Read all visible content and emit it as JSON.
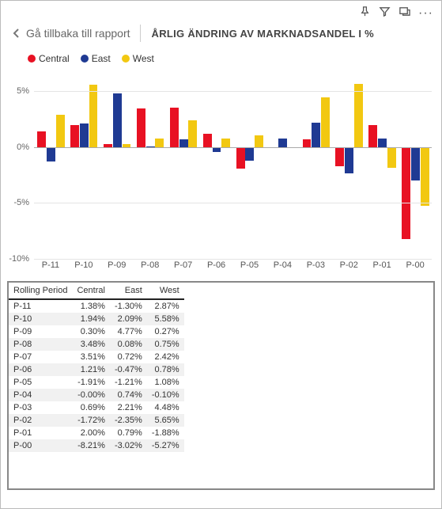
{
  "toolbar": {
    "icons": [
      "pin",
      "filter",
      "focus",
      "more"
    ]
  },
  "header": {
    "back_label": "Gå tillbaka till rapport",
    "title": "ÅRLIG ÄNDRING AV MARKNADSANDEL I %"
  },
  "legend": {
    "items": [
      {
        "label": "Central",
        "color": "#e81123"
      },
      {
        "label": "East",
        "color": "#1f3a93"
      },
      {
        "label": "West",
        "color": "#f2c811"
      }
    ]
  },
  "chart": {
    "type": "bar",
    "y_min": -10,
    "y_max": 7,
    "y_ticks": [
      5,
      0,
      -5,
      -10
    ],
    "y_tick_labels": [
      "5%",
      "0%",
      "-5%",
      "-10%"
    ],
    "gridline_color": "#e4e4e4",
    "zero_color": "#aaaaaa",
    "categories": [
      "P-11",
      "P-10",
      "P-09",
      "P-08",
      "P-07",
      "P-06",
      "P-05",
      "P-04",
      "P-03",
      "P-02",
      "P-01",
      "P-00"
    ],
    "series": [
      {
        "name": "Central",
        "color": "#e81123",
        "values": [
          1.38,
          1.94,
          0.3,
          3.48,
          3.51,
          1.21,
          -1.91,
          0.0,
          0.69,
          -1.72,
          2.0,
          -8.21
        ]
      },
      {
        "name": "East",
        "color": "#1f3a93",
        "values": [
          -1.3,
          2.09,
          4.77,
          0.08,
          0.72,
          -0.47,
          -1.21,
          0.74,
          2.21,
          -2.35,
          0.79,
          -3.02
        ]
      },
      {
        "name": "West",
        "color": "#f2c811",
        "values": [
          2.87,
          5.58,
          0.27,
          0.75,
          2.42,
          0.78,
          1.08,
          -0.1,
          4.48,
          5.65,
          -1.88,
          -5.27
        ]
      }
    ]
  },
  "table": {
    "columns": [
      "Rolling Period",
      "Central",
      "East",
      "West"
    ],
    "rows": [
      [
        "P-11",
        "1.38%",
        "-1.30%",
        "2.87%"
      ],
      [
        "P-10",
        "1.94%",
        "2.09%",
        "5.58%"
      ],
      [
        "P-09",
        "0.30%",
        "4.77%",
        "0.27%"
      ],
      [
        "P-08",
        "3.48%",
        "0.08%",
        "0.75%"
      ],
      [
        "P-07",
        "3.51%",
        "0.72%",
        "2.42%"
      ],
      [
        "P-06",
        "1.21%",
        "-0.47%",
        "0.78%"
      ],
      [
        "P-05",
        "-1.91%",
        "-1.21%",
        "1.08%"
      ],
      [
        "P-04",
        "-0.00%",
        "0.74%",
        "-0.10%"
      ],
      [
        "P-03",
        "0.69%",
        "2.21%",
        "4.48%"
      ],
      [
        "P-02",
        "-1.72%",
        "-2.35%",
        "5.65%"
      ],
      [
        "P-01",
        "2.00%",
        "0.79%",
        "-1.88%"
      ],
      [
        "P-00",
        "-8.21%",
        "-3.02%",
        "-5.27%"
      ]
    ],
    "alt_row_bg": "#f1f1f1"
  }
}
